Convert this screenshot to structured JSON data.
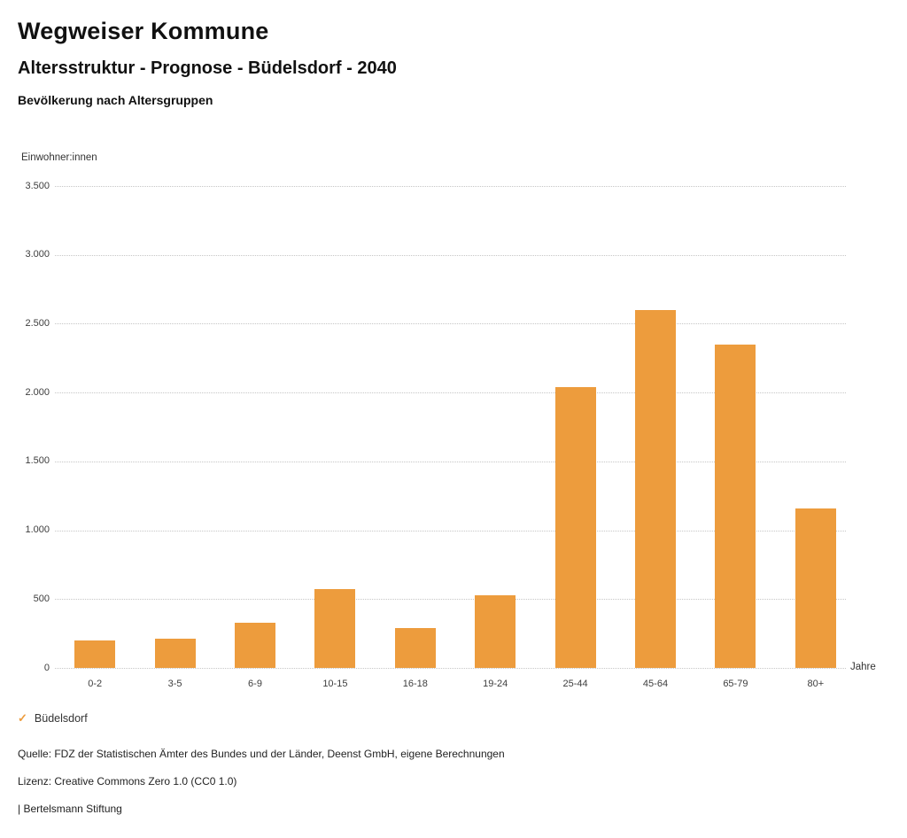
{
  "header": {
    "title": "Wegweiser Kommune",
    "subtitle": "Altersstruktur - Prognose - Büdelsdorf - 2040",
    "caption": "Bevölkerung nach Altersgruppen"
  },
  "chart_data": {
    "type": "bar",
    "title": "Bevölkerung nach Altersgruppen",
    "ylabel": "Einwohner:innen",
    "xlabel": "",
    "x_unit_label": "Jahre",
    "categories": [
      "0-2",
      "3-5",
      "6-9",
      "10-15",
      "16-18",
      "19-24",
      "25-44",
      "45-64",
      "65-79",
      "80+"
    ],
    "series": [
      {
        "name": "Büdelsdorf",
        "color": "#ED9C3D",
        "values": [
          200,
          210,
          325,
          570,
          290,
          525,
          2040,
          2600,
          2350,
          1160
        ]
      }
    ],
    "ylim": [
      0,
      3500
    ],
    "ytick_values": [
      0,
      500,
      1000,
      1500,
      2000,
      2500,
      3000,
      3500
    ],
    "ytick_labels": [
      "0",
      "500",
      "1.000",
      "1.500",
      "2.000",
      "2.500",
      "3.000",
      "3.500"
    ],
    "grid": "horizontal dotted",
    "legend_position": "bottom-left"
  },
  "legend": {
    "check_icon": "✓",
    "label": "Büdelsdorf",
    "color": "#ED9C3D"
  },
  "footer": {
    "source": "Quelle: FDZ der Statistischen Ämter des Bundes und der Länder, Deenst GmbH, eigene Berechnungen",
    "license": "Lizenz: Creative Commons Zero 1.0 (CC0 1.0)",
    "attribution": "| Bertelsmann Stiftung"
  }
}
